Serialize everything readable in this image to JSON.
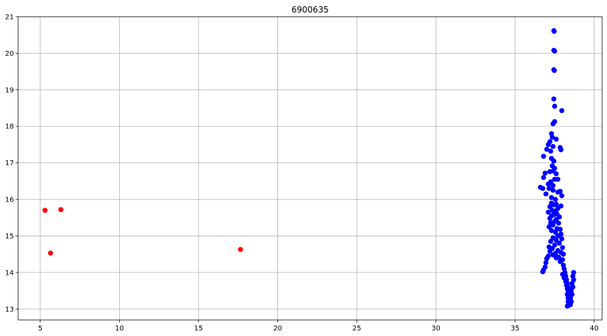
{
  "chart_data": {
    "type": "scatter",
    "title": "6900635",
    "xlabel": "",
    "ylabel": "",
    "xlim": [
      3.6,
      40.5
    ],
    "ylim": [
      12.7,
      21.0
    ],
    "xticks": [
      5,
      10,
      15,
      20,
      25,
      30,
      35,
      40
    ],
    "yticks": [
      13,
      14,
      15,
      16,
      17,
      18,
      19,
      20,
      21
    ],
    "grid": true,
    "legend": "none",
    "series": [
      {
        "color": "#ff0000",
        "points": [
          [
            5.3,
            15.7
          ],
          [
            5.65,
            14.53
          ],
          [
            6.3,
            15.72
          ],
          [
            17.65,
            14.63
          ]
        ]
      },
      {
        "color": "#0000ff",
        "points": [
          [
            37.45,
            20.62
          ],
          [
            37.47,
            20.6
          ],
          [
            37.45,
            20.08
          ],
          [
            37.5,
            20.06
          ],
          [
            37.45,
            19.55
          ],
          [
            37.48,
            19.53
          ],
          [
            37.45,
            18.75
          ],
          [
            37.5,
            18.55
          ],
          [
            37.95,
            18.43
          ],
          [
            37.5,
            18.13
          ],
          [
            37.4,
            18.07
          ],
          [
            37.3,
            17.8
          ],
          [
            37.35,
            17.7
          ],
          [
            37.6,
            17.65
          ],
          [
            37.2,
            17.58
          ],
          [
            37.1,
            17.5
          ],
          [
            37.4,
            17.45
          ],
          [
            37.85,
            17.42
          ],
          [
            37.9,
            17.36
          ],
          [
            37.0,
            17.37
          ],
          [
            37.25,
            17.32
          ],
          [
            36.8,
            17.18
          ],
          [
            37.3,
            17.12
          ],
          [
            37.45,
            17.05
          ],
          [
            37.35,
            16.92
          ],
          [
            37.5,
            16.85
          ],
          [
            37.4,
            16.78
          ],
          [
            37.2,
            16.76
          ],
          [
            36.9,
            16.72
          ],
          [
            37.6,
            16.7
          ],
          [
            36.8,
            16.6
          ],
          [
            37.5,
            16.55
          ],
          [
            37.7,
            16.55
          ],
          [
            37.25,
            16.48
          ],
          [
            37.1,
            16.42
          ],
          [
            37.4,
            16.38
          ],
          [
            36.6,
            16.33
          ],
          [
            36.75,
            16.3
          ],
          [
            37.15,
            16.3
          ],
          [
            37.4,
            16.25
          ],
          [
            37.85,
            16.22
          ],
          [
            37.7,
            16.2
          ],
          [
            36.95,
            16.15
          ],
          [
            37.95,
            16.1
          ],
          [
            37.3,
            16.05
          ],
          [
            37.55,
            16.0
          ],
          [
            37.3,
            15.9
          ],
          [
            37.6,
            15.87
          ],
          [
            37.45,
            15.85
          ],
          [
            37.9,
            15.82
          ],
          [
            37.2,
            15.8
          ],
          [
            37.7,
            15.75
          ],
          [
            37.35,
            15.7
          ],
          [
            37.55,
            15.68
          ],
          [
            37.1,
            15.65
          ],
          [
            37.65,
            15.6
          ],
          [
            37.45,
            15.58
          ],
          [
            37.3,
            15.55
          ],
          [
            37.8,
            15.52
          ],
          [
            37.2,
            15.48
          ],
          [
            37.6,
            15.45
          ],
          [
            37.5,
            15.4
          ],
          [
            37.25,
            15.36
          ],
          [
            37.75,
            15.35
          ],
          [
            37.4,
            15.3
          ],
          [
            37.15,
            15.25
          ],
          [
            37.65,
            15.2
          ],
          [
            37.85,
            15.18
          ],
          [
            37.3,
            15.15
          ],
          [
            37.55,
            15.1
          ],
          [
            37.9,
            15.05
          ],
          [
            37.7,
            15.0
          ],
          [
            37.4,
            14.95
          ],
          [
            37.95,
            14.92
          ],
          [
            37.6,
            14.88
          ],
          [
            37.25,
            14.85
          ],
          [
            37.8,
            14.8
          ],
          [
            37.5,
            14.75
          ],
          [
            37.15,
            14.7
          ],
          [
            38.0,
            14.68
          ],
          [
            37.35,
            14.65
          ],
          [
            37.7,
            14.6
          ],
          [
            37.2,
            14.58
          ],
          [
            37.9,
            14.55
          ],
          [
            37.55,
            14.52
          ],
          [
            38.05,
            14.5
          ],
          [
            37.4,
            14.48
          ],
          [
            37.1,
            14.45
          ],
          [
            37.75,
            14.42
          ],
          [
            37.6,
            14.4
          ],
          [
            37.0,
            14.38
          ],
          [
            38.0,
            14.35
          ],
          [
            37.85,
            14.3
          ],
          [
            36.95,
            14.27
          ],
          [
            38.05,
            14.2
          ],
          [
            36.9,
            14.15
          ],
          [
            38.1,
            14.1
          ],
          [
            36.8,
            14.07
          ],
          [
            36.75,
            14.02
          ],
          [
            38.15,
            14.0
          ],
          [
            38.0,
            13.95
          ],
          [
            38.2,
            13.9
          ],
          [
            38.1,
            13.85
          ],
          [
            38.25,
            13.8
          ],
          [
            38.2,
            13.75
          ],
          [
            38.3,
            13.7
          ],
          [
            38.25,
            13.65
          ],
          [
            38.35,
            13.6
          ],
          [
            38.3,
            13.55
          ],
          [
            38.4,
            13.5
          ],
          [
            38.35,
            13.45
          ],
          [
            38.3,
            13.4
          ],
          [
            38.45,
            13.35
          ],
          [
            38.35,
            13.3
          ],
          [
            38.4,
            13.25
          ],
          [
            38.35,
            13.2
          ],
          [
            38.45,
            13.15
          ],
          [
            38.4,
            13.1
          ],
          [
            38.3,
            13.08
          ],
          [
            38.5,
            13.12
          ],
          [
            38.55,
            13.2
          ],
          [
            38.5,
            13.3
          ],
          [
            38.6,
            13.4
          ],
          [
            38.55,
            13.5
          ],
          [
            38.65,
            13.6
          ],
          [
            38.6,
            13.7
          ],
          [
            38.7,
            13.8
          ],
          [
            38.65,
            13.9
          ],
          [
            38.7,
            14.0
          ]
        ]
      }
    ]
  }
}
